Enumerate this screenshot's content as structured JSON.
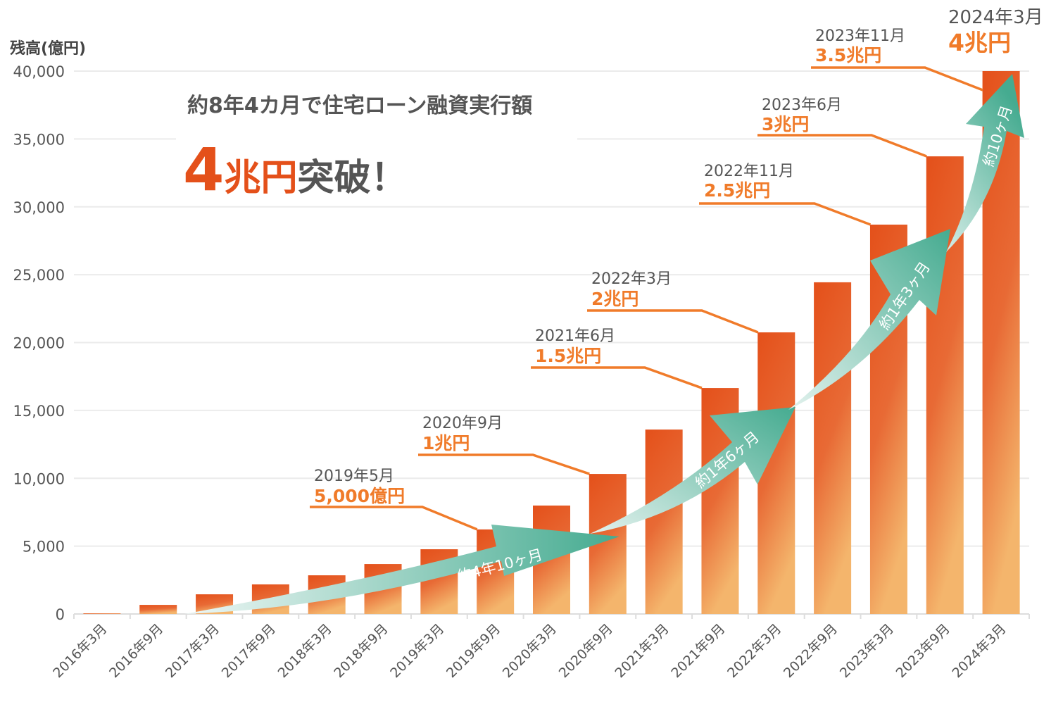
{
  "chart_data": {
    "type": "bar",
    "ylabel": "残高(億円)",
    "ylim": [
      0,
      40000
    ],
    "yticks": [
      0,
      5000,
      10000,
      15000,
      20000,
      25000,
      30000,
      35000,
      40000
    ],
    "ytick_labels": [
      "0",
      "5,000",
      "10,000",
      "15,000",
      "20,000",
      "25,000",
      "30,000",
      "35,000",
      "40,000"
    ],
    "grid": true,
    "categories": [
      "2016年3月",
      "2016年9月",
      "2017年3月",
      "2017年9月",
      "2018年3月",
      "2018年9月",
      "2019年3月",
      "2019年9月",
      "2020年3月",
      "2020年9月",
      "2021年3月",
      "2021年9月",
      "2022年3月",
      "2022年9月",
      "2023年3月",
      "2023年9月",
      "2024年3月"
    ],
    "values": [
      50,
      670,
      1450,
      2180,
      2850,
      3680,
      4770,
      6230,
      7990,
      10320,
      13590,
      16650,
      20750,
      24440,
      28690,
      33720,
      40000
    ],
    "colors": {
      "bar_top": "#e4501a",
      "bar_bottom": "#f3b46b",
      "accent": "#e4501a",
      "milestone": "#f07b2a",
      "arrow": "#4cae94"
    },
    "headline": {
      "line1": "約8年4カ月で住宅ローン融資実行額",
      "big_number": "4",
      "unit": "兆円",
      "suffix": "突破！"
    },
    "milestones": [
      {
        "date": "2019年5月",
        "amount": "5,000億円"
      },
      {
        "date": "2020年9月",
        "amount": "1兆円"
      },
      {
        "date": "2021年6月",
        "amount": "1.5兆円"
      },
      {
        "date": "2022年3月",
        "amount": "2兆円"
      },
      {
        "date": "2022年11月",
        "amount": "2.5兆円"
      },
      {
        "date": "2023年6月",
        "amount": "3兆円"
      },
      {
        "date": "2023年11月",
        "amount": "3.5兆円"
      },
      {
        "date": "2024年3月",
        "amount": "4兆円"
      }
    ],
    "intervals": [
      "約4年10ヶ月",
      "約1年6ヶ月",
      "約1年3ヶ月",
      "約10ヶ月"
    ]
  }
}
